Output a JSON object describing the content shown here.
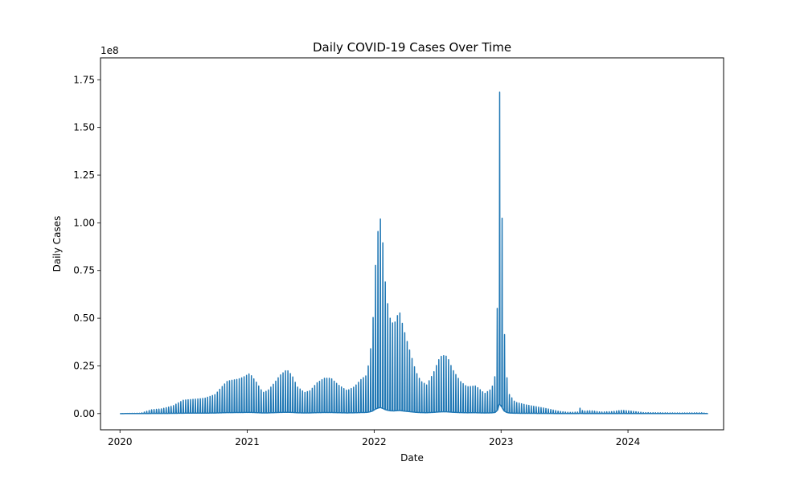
{
  "chart_data": {
    "type": "line",
    "title": "Daily COVID-19 Cases Over Time",
    "xlabel": "Date",
    "ylabel": "Daily Cases",
    "y_offset_label": "1e8",
    "y_multiplier": 100000000,
    "xlim": [
      "2019-11-06",
      "2024-10-02"
    ],
    "ylim": [
      -0.085,
      1.865
    ],
    "x_ticks": [
      {
        "date": "2020-01-01",
        "label": "2020"
      },
      {
        "date": "2021-01-01",
        "label": "2021"
      },
      {
        "date": "2022-01-01",
        "label": "2022"
      },
      {
        "date": "2023-01-01",
        "label": "2023"
      },
      {
        "date": "2024-01-01",
        "label": "2024"
      }
    ],
    "y_ticks": [
      {
        "value": 0.0,
        "label": "0.00"
      },
      {
        "value": 0.25,
        "label": "0.25"
      },
      {
        "value": 0.5,
        "label": "0.50"
      },
      {
        "value": 0.75,
        "label": "0.75"
      },
      {
        "value": 1.0,
        "label": "1.00"
      },
      {
        "value": 1.25,
        "label": "1.25"
      },
      {
        "value": 1.5,
        "label": "1.50"
      },
      {
        "value": 1.75,
        "label": "1.75"
      }
    ],
    "grid": false,
    "legend": "none",
    "series": [
      {
        "color": "#1f77b4",
        "points": [
          [
            "2020-01-01",
            0.0
          ],
          [
            "2020-03-01",
            0.002
          ],
          [
            "2020-04-01",
            0.02
          ],
          [
            "2020-05-01",
            0.025
          ],
          [
            "2020-06-01",
            0.04
          ],
          [
            "2020-07-01",
            0.07
          ],
          [
            "2020-08-01",
            0.075
          ],
          [
            "2020-09-01",
            0.08
          ],
          [
            "2020-10-01",
            0.1
          ],
          [
            "2020-10-20",
            0.14
          ],
          [
            "2020-11-05",
            0.17
          ],
          [
            "2020-11-20",
            0.175
          ],
          [
            "2020-12-05",
            0.18
          ],
          [
            "2020-12-20",
            0.19
          ],
          [
            "2021-01-08",
            0.21
          ],
          [
            "2021-01-25",
            0.17
          ],
          [
            "2021-02-15",
            0.11
          ],
          [
            "2021-03-01",
            0.12
          ],
          [
            "2021-03-20",
            0.16
          ],
          [
            "2021-04-05",
            0.2
          ],
          [
            "2021-04-25",
            0.23
          ],
          [
            "2021-05-10",
            0.2
          ],
          [
            "2021-05-25",
            0.14
          ],
          [
            "2021-06-15",
            0.11
          ],
          [
            "2021-07-01",
            0.12
          ],
          [
            "2021-07-20",
            0.16
          ],
          [
            "2021-08-10",
            0.185
          ],
          [
            "2021-08-30",
            0.185
          ],
          [
            "2021-09-20",
            0.15
          ],
          [
            "2021-10-15",
            0.12
          ],
          [
            "2021-11-05",
            0.14
          ],
          [
            "2021-11-25",
            0.18
          ],
          [
            "2021-12-10",
            0.2
          ],
          [
            "2021-12-20",
            0.3
          ],
          [
            "2021-12-28",
            0.46
          ],
          [
            "2022-01-03",
            0.72
          ],
          [
            "2022-01-09",
            0.89
          ],
          [
            "2022-01-15",
            1.02
          ],
          [
            "2022-01-21",
            1.02
          ],
          [
            "2022-01-27",
            0.87
          ],
          [
            "2022-02-02",
            0.69
          ],
          [
            "2022-02-10",
            0.56
          ],
          [
            "2022-02-18",
            0.48
          ],
          [
            "2022-02-28",
            0.47
          ],
          [
            "2022-03-08",
            0.51
          ],
          [
            "2022-03-15",
            0.535
          ],
          [
            "2022-03-22",
            0.48
          ],
          [
            "2022-04-01",
            0.41
          ],
          [
            "2022-04-15",
            0.32
          ],
          [
            "2022-05-01",
            0.22
          ],
          [
            "2022-05-15",
            0.17
          ],
          [
            "2022-06-01",
            0.15
          ],
          [
            "2022-06-20",
            0.21
          ],
          [
            "2022-07-05",
            0.28
          ],
          [
            "2022-07-15",
            0.305
          ],
          [
            "2022-07-30",
            0.3
          ],
          [
            "2022-08-15",
            0.23
          ],
          [
            "2022-09-05",
            0.17
          ],
          [
            "2022-09-25",
            0.14
          ],
          [
            "2022-10-20",
            0.145
          ],
          [
            "2022-11-15",
            0.105
          ],
          [
            "2022-12-05",
            0.13
          ],
          [
            "2022-12-15",
            0.2
          ],
          [
            "2022-12-22",
            0.61
          ],
          [
            "2022-12-27",
            1.78
          ],
          [
            "2023-01-03",
            1.12
          ],
          [
            "2023-01-10",
            0.45
          ],
          [
            "2023-01-17",
            0.2
          ],
          [
            "2023-01-25",
            0.1
          ],
          [
            "2023-02-10",
            0.06
          ],
          [
            "2023-03-15",
            0.045
          ],
          [
            "2023-04-15",
            0.035
          ],
          [
            "2023-05-15",
            0.025
          ],
          [
            "2023-06-15",
            0.012
          ],
          [
            "2023-07-15",
            0.006
          ],
          [
            "2023-08-10",
            0.008
          ],
          [
            "2023-08-16",
            0.028
          ],
          [
            "2023-08-25",
            0.012
          ],
          [
            "2023-09-15",
            0.015
          ],
          [
            "2023-10-15",
            0.008
          ],
          [
            "2023-11-15",
            0.01
          ],
          [
            "2023-12-15",
            0.017
          ],
          [
            "2024-01-15",
            0.012
          ],
          [
            "2024-02-15",
            0.005
          ],
          [
            "2024-04-01",
            0.004
          ],
          [
            "2024-06-01",
            0.003
          ],
          [
            "2024-08-01",
            0.004
          ],
          [
            "2024-08-18",
            0.0
          ]
        ]
      }
    ]
  }
}
